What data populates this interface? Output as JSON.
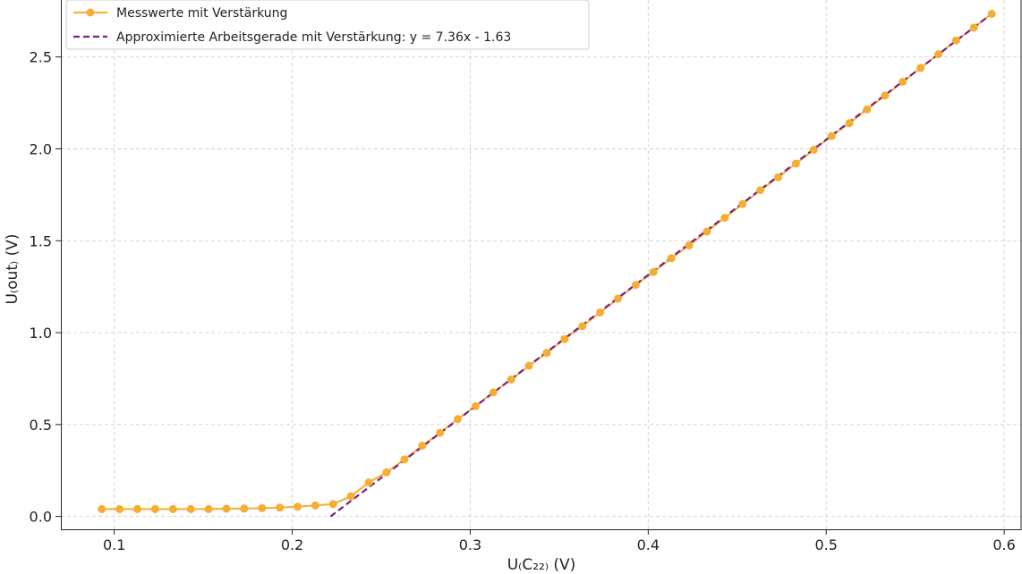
{
  "chart_data": {
    "type": "line",
    "xlabel": "U₍C₂₂₎ (V)",
    "ylabel": "U₍out₎ (V)",
    "xlim": [
      0.07,
      0.61
    ],
    "ylim": [
      -0.07,
      2.81
    ],
    "xticks": [
      0.1,
      0.2,
      0.3,
      0.4,
      0.5,
      0.6
    ],
    "yticks": [
      0.0,
      0.5,
      1.0,
      1.5,
      2.0,
      2.5
    ],
    "xtick_labels": [
      "0.1",
      "0.2",
      "0.3",
      "0.4",
      "0.5",
      "0.6"
    ],
    "ytick_labels": [
      "0.0",
      "0.5",
      "1.0",
      "1.5",
      "2.0",
      "2.5"
    ],
    "grid": true,
    "legend_position": "top-left",
    "series": [
      {
        "name": "Messwerte mit Verstärkung",
        "style": "line-with-markers",
        "color": "#f6ad33",
        "x": [
          0.093,
          0.103,
          0.113,
          0.123,
          0.133,
          0.143,
          0.153,
          0.163,
          0.173,
          0.183,
          0.193,
          0.203,
          0.213,
          0.223,
          0.233,
          0.243,
          0.253,
          0.263,
          0.273,
          0.283,
          0.293,
          0.303,
          0.313,
          0.323,
          0.333,
          0.343,
          0.353,
          0.363,
          0.373,
          0.383,
          0.393,
          0.403,
          0.413,
          0.423,
          0.433,
          0.443,
          0.453,
          0.463,
          0.473,
          0.483,
          0.493,
          0.503,
          0.513,
          0.523,
          0.533,
          0.543,
          0.553,
          0.563,
          0.573,
          0.583,
          0.593
        ],
        "y": [
          0.04,
          0.04,
          0.04,
          0.04,
          0.04,
          0.04,
          0.04,
          0.042,
          0.043,
          0.045,
          0.048,
          0.053,
          0.06,
          0.067,
          0.11,
          0.185,
          0.24,
          0.31,
          0.385,
          0.455,
          0.53,
          0.6,
          0.675,
          0.745,
          0.82,
          0.89,
          0.965,
          1.035,
          1.11,
          1.185,
          1.26,
          1.33,
          1.405,
          1.475,
          1.55,
          1.625,
          1.7,
          1.775,
          1.845,
          1.92,
          1.995,
          2.07,
          2.14,
          2.215,
          2.29,
          2.365,
          2.44,
          2.515,
          2.59,
          2.66,
          2.735
        ]
      },
      {
        "name": "Approximierte Arbeitsgerade mit Verstärkung: y = 7.36x - 1.63",
        "style": "dashed-line",
        "color": "#7b2181",
        "x": [
          0.2215,
          0.593
        ],
        "y": [
          0.0,
          2.735
        ]
      }
    ]
  }
}
